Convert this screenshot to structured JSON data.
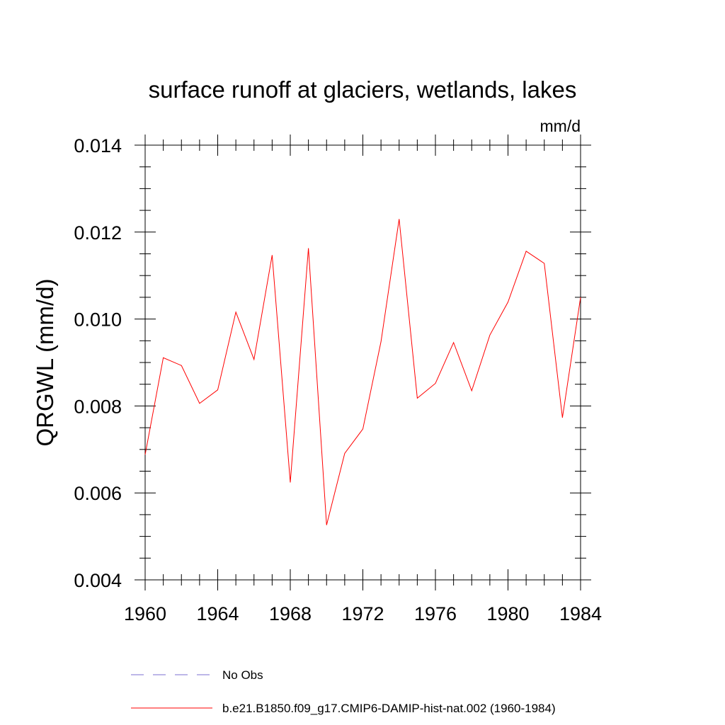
{
  "chart_data": {
    "type": "line",
    "title": "surface runoff at glaciers, wetlands, lakes",
    "units": "mm/d",
    "ylabel": "QRGWL  (mm/d)",
    "xlabel": "",
    "xlim": [
      1960,
      1984
    ],
    "ylim": [
      0.004,
      0.014
    ],
    "xticks": [
      1960,
      1964,
      1968,
      1972,
      1976,
      1980,
      1984
    ],
    "xtick_labels": [
      "1960",
      "1964",
      "1968",
      "1972",
      "1976",
      "1980",
      "1984"
    ],
    "yticks": [
      0.004,
      0.006,
      0.008,
      0.01,
      0.012,
      0.014
    ],
    "ytick_labels": [
      "0.004",
      "0.006",
      "0.008",
      "0.010",
      "0.012",
      "0.014"
    ],
    "grid": false,
    "legend_position": "bottom",
    "series": [
      {
        "name": "No Obs",
        "color": "#7b6fd0",
        "dash": "dashed",
        "x": [],
        "y": []
      },
      {
        "name": "b.e21.B1850.f09_g17.CMIP6-DAMIP-hist-nat.002 (1960-1984)",
        "color": "#ff0000",
        "dash": "solid",
        "x": [
          1960,
          1961,
          1962,
          1963,
          1964,
          1965,
          1966,
          1967,
          1968,
          1969,
          1970,
          1971,
          1972,
          1973,
          1974,
          1975,
          1976,
          1977,
          1978,
          1979,
          1980,
          1981,
          1982,
          1983,
          1984
        ],
        "y": [
          0.00688,
          0.00911,
          0.00893,
          0.00806,
          0.00837,
          0.01016,
          0.00907,
          0.01147,
          0.00624,
          0.01163,
          0.00526,
          0.00691,
          0.00747,
          0.00948,
          0.0123,
          0.00818,
          0.00852,
          0.00946,
          0.00835,
          0.00963,
          0.01039,
          0.01156,
          0.01128,
          0.00773,
          0.0105
        ]
      }
    ]
  }
}
